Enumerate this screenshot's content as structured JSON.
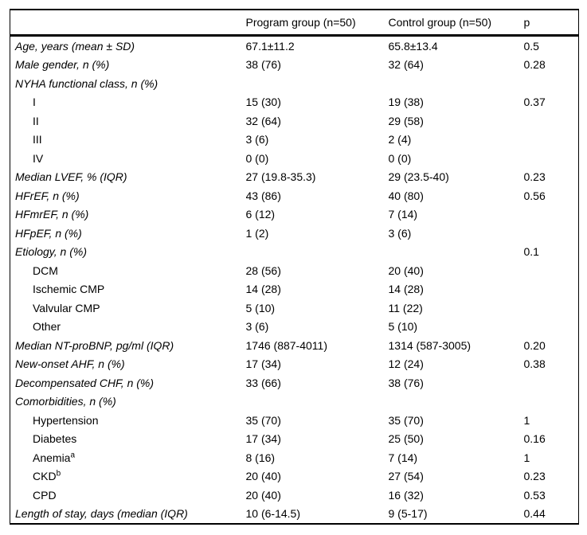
{
  "colors": {
    "background": "#ffffff",
    "text": "#000000",
    "rule": "#000000"
  },
  "table": {
    "columns": [
      "",
      "Program group (n=50)",
      "Control group (n=50)",
      "p"
    ],
    "rows": [
      {
        "label": "Age, years (mean ± SD)",
        "italic": true,
        "indent": false,
        "program": "67.1±11.2",
        "control": "65.8±13.4",
        "p": "0.5"
      },
      {
        "label": "Male gender, n (%)",
        "italic": true,
        "indent": false,
        "program": "38 (76)",
        "control": "32 (64)",
        "p": "0.28"
      },
      {
        "label": "NYHA functional class, n (%)",
        "italic": true,
        "indent": false,
        "program": "",
        "control": "",
        "p": ""
      },
      {
        "label": "I",
        "italic": false,
        "indent": true,
        "program": "15 (30)",
        "control": "19 (38)",
        "p": "0.37"
      },
      {
        "label": "II",
        "italic": false,
        "indent": true,
        "program": "32 (64)",
        "control": "29 (58)",
        "p": ""
      },
      {
        "label": "III",
        "italic": false,
        "indent": true,
        "program": "3 (6)",
        "control": "2 (4)",
        "p": ""
      },
      {
        "label": "IV",
        "italic": false,
        "indent": true,
        "program": "0 (0)",
        "control": "0 (0)",
        "p": ""
      },
      {
        "label": "Median LVEF, % (IQR)",
        "italic": true,
        "indent": false,
        "program": "27 (19.8-35.3)",
        "control": "29 (23.5-40)",
        "p": "0.23"
      },
      {
        "label": "HFrEF, n (%)",
        "italic": true,
        "indent": false,
        "program": "43 (86)",
        "control": "40 (80)",
        "p": "0.56"
      },
      {
        "label": "HFmrEF, n (%)",
        "italic": true,
        "indent": false,
        "program": "6 (12)",
        "control": "7 (14)",
        "p": ""
      },
      {
        "label": "HFpEF, n (%)",
        "italic": true,
        "indent": false,
        "program": "1 (2)",
        "control": "3 (6)",
        "p": ""
      },
      {
        "label": "Etiology, n (%)",
        "italic": true,
        "indent": false,
        "program": "",
        "control": "",
        "p": "0.1"
      },
      {
        "label": "DCM",
        "italic": false,
        "indent": true,
        "program": "28 (56)",
        "control": "20 (40)",
        "p": ""
      },
      {
        "label": "Ischemic CMP",
        "italic": false,
        "indent": true,
        "program": "14 (28)",
        "control": "14 (28)",
        "p": ""
      },
      {
        "label": "Valvular CMP",
        "italic": false,
        "indent": true,
        "program": "5 (10)",
        "control": "11 (22)",
        "p": ""
      },
      {
        "label": "Other",
        "italic": false,
        "indent": true,
        "program": "3 (6)",
        "control": "5 (10)",
        "p": ""
      },
      {
        "label": "Median NT-proBNP, pg/ml (IQR)",
        "italic": true,
        "indent": false,
        "program": "1746 (887-4011)",
        "control": "1314 (587-3005)",
        "p": "0.20"
      },
      {
        "label": "New-onset AHF, n (%)",
        "italic": true,
        "indent": false,
        "program": "17 (34)",
        "control": "12 (24)",
        "p": "0.38"
      },
      {
        "label": "Decompensated CHF, n (%)",
        "italic": true,
        "indent": false,
        "program": "33 (66)",
        "control": "38 (76)",
        "p": ""
      },
      {
        "label": "Comorbidities, n (%)",
        "italic": true,
        "indent": false,
        "program": "",
        "control": "",
        "p": ""
      },
      {
        "label": "Hypertension",
        "italic": false,
        "indent": true,
        "program": "35 (70)",
        "control": "35 (70)",
        "p": "1"
      },
      {
        "label": "Diabetes",
        "italic": false,
        "indent": true,
        "program": "17 (34)",
        "control": "25 (50)",
        "p": "0.16"
      },
      {
        "label": "Anemia",
        "sup": "a",
        "italic": false,
        "indent": true,
        "program": "8 (16)",
        "control": "7 (14)",
        "p": "1"
      },
      {
        "label": "CKD",
        "sup": "b",
        "italic": false,
        "indent": true,
        "program": "20 (40)",
        "control": "27 (54)",
        "p": "0.23"
      },
      {
        "label": "CPD",
        "italic": false,
        "indent": true,
        "program": "20 (40)",
        "control": "16 (32)",
        "p": "0.53"
      },
      {
        "label": "Length of stay, days (median (IQR)",
        "italic": true,
        "indent": false,
        "program": "10 (6-14.5)",
        "control": "9 (5-17)",
        "p": "0.44"
      }
    ]
  }
}
